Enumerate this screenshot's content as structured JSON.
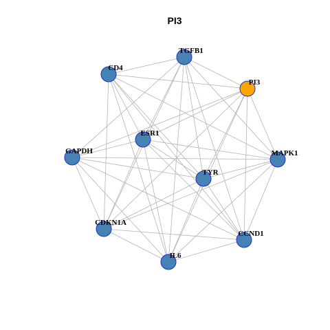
{
  "title": "PI3",
  "nodes": [
    {
      "label": "TGFB1"
    },
    {
      "label": "CD4"
    },
    {
      "label": "PI3"
    },
    {
      "label": "ESR1"
    },
    {
      "label": "GAPDH"
    },
    {
      "label": "MAPK1"
    },
    {
      "label": "TYR"
    },
    {
      "label": "CDKN1A"
    },
    {
      "label": "CCND1"
    },
    {
      "label": "IL6"
    }
  ]
}
